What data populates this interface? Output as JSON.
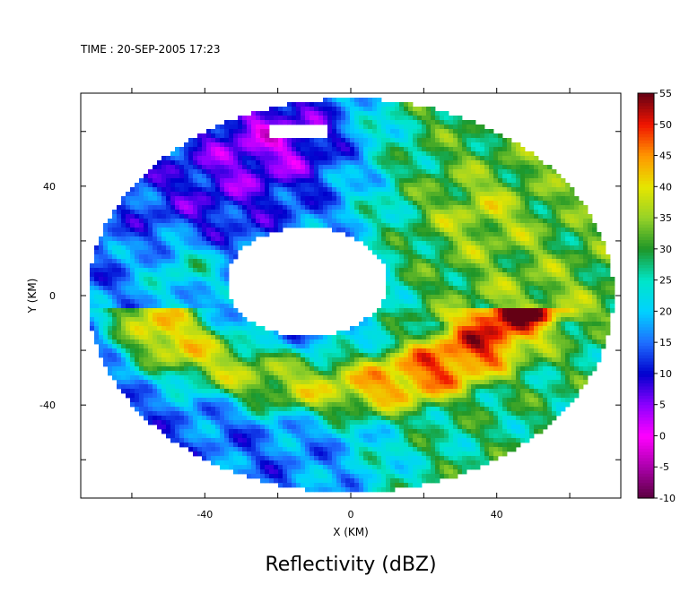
{
  "time_label": "TIME : 20-SEP-2005 17:23",
  "chart_data": {
    "type": "heatmap",
    "title": "Reflectivity (dBZ)",
    "xlabel": "X (KM)",
    "ylabel": "Y (KM)",
    "xlim": [
      -74,
      74
    ],
    "ylim": [
      -74,
      74
    ],
    "xticks": [
      -60,
      -40,
      -20,
      0,
      20,
      40,
      60
    ],
    "yticks": [
      -60,
      -40,
      -20,
      0,
      20,
      40,
      60
    ],
    "xtick_labels": [
      {
        "value": -40,
        "text": "-40"
      },
      {
        "value": 0,
        "text": "0"
      },
      {
        "value": 40,
        "text": "40"
      }
    ],
    "ytick_labels": [
      {
        "value": 40,
        "text": "40"
      },
      {
        "value": 0,
        "text": "0"
      },
      {
        "value": -40,
        "text": "-40"
      }
    ],
    "colorbar": {
      "min": -10,
      "max": 55,
      "step": 5,
      "labels": [
        "55",
        "50",
        "45",
        "40",
        "35",
        "30",
        "25",
        "20",
        "15",
        "10",
        "5",
        "0",
        "-5",
        "-10"
      ],
      "colors": [
        "#5a0026",
        "#8c0000",
        "#d80000",
        "#ff4000",
        "#ff8c00",
        "#ffd700",
        "#c8e600",
        "#7ab800",
        "#1f8c1f",
        "#20b2aa",
        "#00ffff",
        "#1e90ff",
        "#0000cd",
        "#8000ff",
        "#ff00ff"
      ]
    },
    "radar_range_km": 72,
    "no_data": "white"
  }
}
